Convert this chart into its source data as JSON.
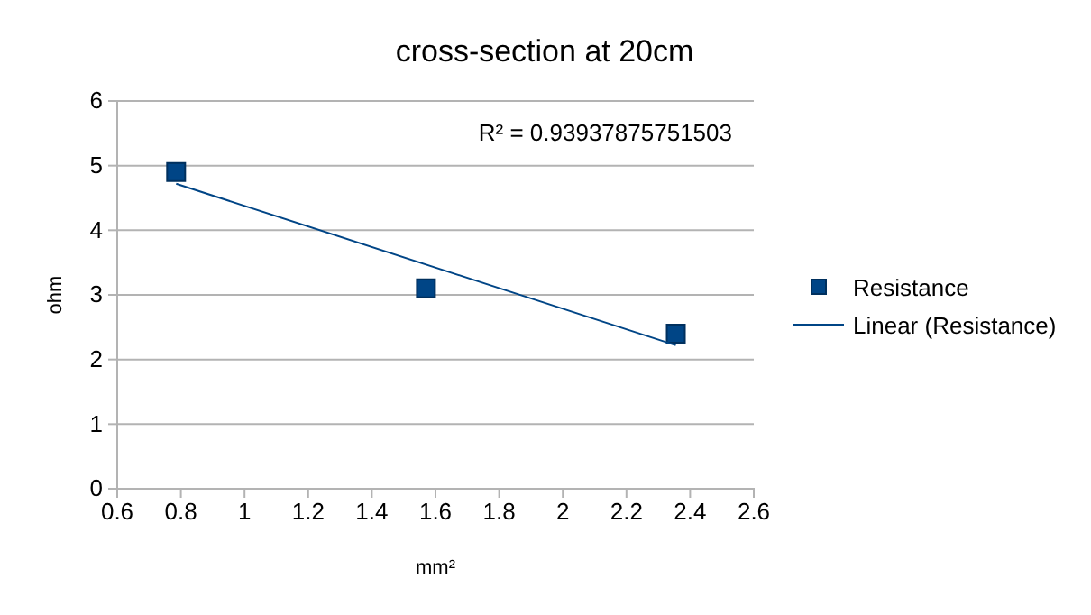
{
  "chart_data": {
    "type": "scatter",
    "title": "cross-section at 20cm",
    "xlabel": "mm²",
    "ylabel": "ohm",
    "xlim": [
      0.6,
      2.6
    ],
    "xticks": [
      0.6,
      0.8,
      1,
      1.2,
      1.4,
      1.6,
      1.8,
      2,
      2.2,
      2.4,
      2.6
    ],
    "ylim": [
      0,
      6
    ],
    "yticks": [
      0,
      1,
      2,
      3,
      4,
      5,
      6
    ],
    "grid": "y",
    "legend": "right",
    "annotations": [
      "R² = 0.93937875751503"
    ],
    "series": [
      {
        "name": "Resistance",
        "marker": "square",
        "color": "#004586",
        "x": [
          0.785,
          1.57,
          2.355
        ],
        "values": [
          4.9,
          3.1,
          2.4
        ]
      },
      {
        "name": "Linear (Resistance)",
        "type": "line",
        "marker": "none",
        "color": "#004586",
        "line_style": "solid",
        "x": [
          0.785,
          2.355
        ],
        "values": [
          4.72,
          2.22
        ]
      }
    ]
  }
}
